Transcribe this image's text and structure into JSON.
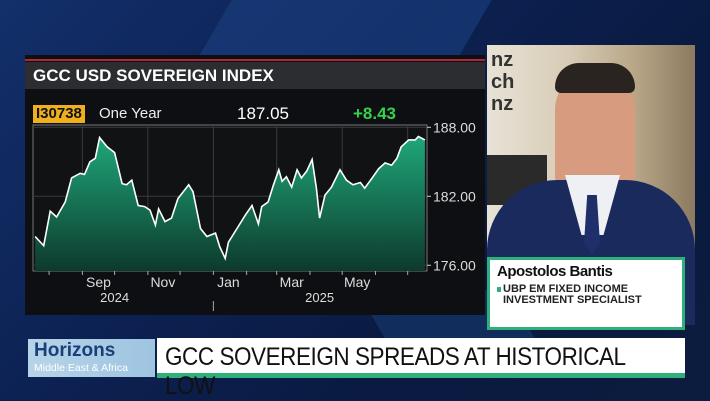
{
  "chart_data": {
    "type": "area",
    "title": "GCC USD SOVEREIGN INDEX",
    "ticker": "I30738",
    "period": "One Year",
    "last_value": "187.05",
    "change": "+8.43",
    "ylim": [
      175.5,
      188.2
    ],
    "xlim": [
      "2024-07-17",
      "2025-07-19"
    ],
    "y_ticks": [
      "188.00",
      "182.00",
      "176.00"
    ],
    "y_tick_values": [
      188,
      182,
      176
    ],
    "x_tick_labels": [
      {
        "label": "Sep",
        "date": "2024-09-16"
      },
      {
        "label": "Nov",
        "date": "2024-11-15"
      },
      {
        "label": "Jan",
        "date": "2025-01-15"
      },
      {
        "label": "Mar",
        "date": "2025-03-15"
      },
      {
        "label": "May",
        "date": "2025-05-15"
      }
    ],
    "year_labels": [
      {
        "label": "2024",
        "date": "2024-10-01"
      },
      {
        "label": "2025",
        "date": "2025-04-10"
      }
    ],
    "grid": true,
    "colors": {
      "line": "#ffffff",
      "fill_top": "#1fa77a",
      "fill_bottom": "#0d3a2c",
      "change": "#34d34a"
    },
    "x": [
      "2024-07-19",
      "2024-07-27",
      "2024-08-02",
      "2024-08-08",
      "2024-08-16",
      "2024-08-22",
      "2024-08-30",
      "2024-09-03",
      "2024-09-08",
      "2024-09-13",
      "2024-09-17",
      "2024-09-24",
      "2024-10-01",
      "2024-10-08",
      "2024-10-12",
      "2024-10-17",
      "2024-10-23",
      "2024-10-29",
      "2024-11-03",
      "2024-11-08",
      "2024-11-11",
      "2024-11-17",
      "2024-11-23",
      "2024-11-29",
      "2024-12-09",
      "2024-12-13",
      "2024-12-20",
      "2024-12-26",
      "2025-01-03",
      "2025-01-07",
      "2025-01-12",
      "2025-01-15",
      "2025-01-23",
      "2025-01-31",
      "2025-02-06",
      "2025-02-12",
      "2025-02-15",
      "2025-02-21",
      "2025-02-26",
      "2025-03-03",
      "2025-03-06",
      "2025-03-10",
      "2025-03-15",
      "2025-03-20",
      "2025-03-24",
      "2025-03-29",
      "2025-04-03",
      "2025-04-07",
      "2025-04-10",
      "2025-04-15",
      "2025-04-21",
      "2025-04-29",
      "2025-05-05",
      "2025-05-11",
      "2025-05-18",
      "2025-05-22",
      "2025-05-29",
      "2025-06-04",
      "2025-06-10",
      "2025-06-16",
      "2025-06-21",
      "2025-06-25",
      "2025-07-02",
      "2025-07-08",
      "2025-07-11",
      "2025-07-17"
    ],
    "y": [
      178.5,
      177.7,
      180.7,
      180.2,
      181.5,
      183.6,
      184.0,
      183.9,
      185.0,
      185.3,
      187.1,
      186.3,
      185.8,
      183.1,
      183.0,
      183.4,
      181.2,
      181.1,
      180.8,
      179.5,
      180.9,
      179.8,
      180.1,
      181.8,
      183.0,
      182.4,
      179.2,
      178.5,
      178.8,
      177.6,
      176.6,
      178.0,
      179.2,
      180.4,
      181.2,
      179.6,
      181.1,
      181.5,
      183.0,
      184.3,
      183.3,
      183.7,
      182.8,
      184.3,
      183.6,
      184.2,
      185.2,
      182.7,
      180.1,
      182.1,
      182.8,
      184.3,
      183.4,
      183.0,
      183.2,
      182.7,
      183.6,
      184.4,
      184.9,
      184.7,
      185.3,
      186.3,
      186.9,
      186.9,
      187.2,
      186.9
    ]
  },
  "guest": {
    "name": "Apostolos Bantis",
    "role_line1": "UBP EM FIXED INCOME",
    "role_line2": "INVESTMENT SPECIALIST"
  },
  "brand": {
    "name": "Horizons",
    "sub": "Middle East & Africa"
  },
  "headline": "GCC SOVEREIGN SPREADS AT HISTORICAL LOW",
  "backdrop_text": "nz ch nz"
}
